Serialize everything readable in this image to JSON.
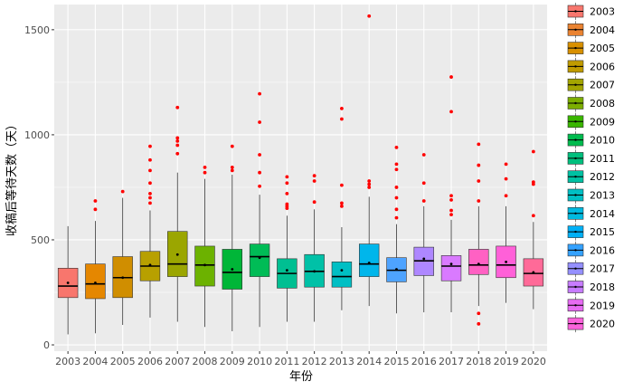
{
  "chart_data": {
    "type": "boxplot",
    "xlabel": "年份",
    "ylabel": "收稿后等待天数（天）",
    "ylim": [
      -30,
      1620
    ],
    "y_ticks": [
      0,
      500,
      1000,
      1500
    ],
    "categories": [
      "2003",
      "2004",
      "2005",
      "2006",
      "2007",
      "2008",
      "2009",
      "2010",
      "2011",
      "2012",
      "2013",
      "2014",
      "2015",
      "2016",
      "2017",
      "2018",
      "2019",
      "2020"
    ],
    "colors": [
      "#F8766D",
      "#EA8331",
      "#D89000",
      "#C09B00",
      "#A3A500",
      "#7CAE00",
      "#39B600",
      "#00BB4E",
      "#00BF7D",
      "#00C1A3",
      "#00BFC4",
      "#00BAE0",
      "#00B0F6",
      "#35A2FF",
      "#9590FF",
      "#C77CFF",
      "#E76BF3",
      "#FA62DB",
      "#FF62BC",
      "#FF6A98"
    ],
    "box_colors": [
      "#F8766D",
      "#E58700",
      "#D08E00",
      "#B8A000",
      "#9BA600",
      "#6CB200",
      "#00B638",
      "#00BC56",
      "#00BF92",
      "#00C1A7",
      "#00BFC4",
      "#00B6EB",
      "#4EA3FF",
      "#AE87FF",
      "#D97AFF",
      "#FF61C3",
      "#FF60D8",
      "#FF6A98"
    ],
    "series": [
      {
        "name": "2003",
        "min": 50,
        "q1": 225,
        "median": 280,
        "q3": 365,
        "max": 565,
        "mean": 295,
        "outliers": []
      },
      {
        "name": "2004",
        "min": 55,
        "q1": 220,
        "median": 290,
        "q3": 385,
        "max": 590,
        "mean": 295,
        "outliers": [
          645,
          685
        ]
      },
      {
        "name": "2005",
        "min": 95,
        "q1": 225,
        "median": 320,
        "q3": 420,
        "max": 700,
        "mean": 320,
        "outliers": [
          730
        ]
      },
      {
        "name": "2006",
        "min": 130,
        "q1": 305,
        "median": 375,
        "q3": 445,
        "max": 640,
        "mean": 380,
        "outliers": [
          675,
          700,
          720,
          770,
          830,
          880,
          945
        ]
      },
      {
        "name": "2007",
        "min": 110,
        "q1": 325,
        "median": 385,
        "q3": 540,
        "max": 820,
        "mean": 430,
        "outliers": [
          910,
          950,
          970,
          985,
          1130
        ]
      },
      {
        "name": "2008",
        "min": 85,
        "q1": 280,
        "median": 380,
        "q3": 470,
        "max": 790,
        "mean": 380,
        "outliers": [
          820,
          845
        ]
      },
      {
        "name": "2009",
        "min": 65,
        "q1": 265,
        "median": 345,
        "q3": 455,
        "max": 810,
        "mean": 360,
        "outliers": [
          830,
          845,
          945
        ]
      },
      {
        "name": "2010",
        "min": 85,
        "q1": 325,
        "median": 420,
        "q3": 480,
        "max": 715,
        "mean": 415,
        "outliers": [
          755,
          820,
          905,
          1060,
          1195
        ]
      },
      {
        "name": "2011",
        "min": 110,
        "q1": 270,
        "median": 340,
        "q3": 410,
        "max": 615,
        "mean": 355,
        "outliers": [
          650,
          660,
          670,
          720,
          770,
          800
        ]
      },
      {
        "name": "2012",
        "min": 110,
        "q1": 275,
        "median": 350,
        "q3": 430,
        "max": 645,
        "mean": 350,
        "outliers": [
          680,
          780,
          805
        ]
      },
      {
        "name": "2013",
        "min": 165,
        "q1": 275,
        "median": 325,
        "q3": 395,
        "max": 560,
        "mean": 355,
        "outliers": [
          660,
          675,
          760,
          1075,
          1125
        ]
      },
      {
        "name": "2014",
        "min": 185,
        "q1": 325,
        "median": 385,
        "q3": 480,
        "max": 705,
        "mean": 390,
        "outliers": [
          750,
          765,
          780,
          1565
        ]
      },
      {
        "name": "2015",
        "min": 150,
        "q1": 300,
        "median": 355,
        "q3": 415,
        "max": 575,
        "mean": 360,
        "outliers": [
          605,
          645,
          700,
          750,
          835,
          860,
          940
        ]
      },
      {
        "name": "2016",
        "min": 155,
        "q1": 330,
        "median": 400,
        "q3": 465,
        "max": 660,
        "mean": 410,
        "outliers": [
          685,
          770,
          905
        ]
      },
      {
        "name": "2017",
        "min": 155,
        "q1": 305,
        "median": 375,
        "q3": 425,
        "max": 595,
        "mean": 385,
        "outliers": [
          620,
          640,
          690,
          710,
          1110,
          1275
        ]
      },
      {
        "name": "2018",
        "min": 185,
        "q1": 335,
        "median": 380,
        "q3": 455,
        "max": 660,
        "mean": 385,
        "outliers": [
          100,
          150,
          685,
          780,
          855,
          955
        ]
      },
      {
        "name": "2019",
        "min": 200,
        "q1": 320,
        "median": 380,
        "q3": 470,
        "max": 660,
        "mean": 395,
        "outliers": [
          710,
          790,
          860
        ]
      },
      {
        "name": "2020",
        "min": 170,
        "q1": 280,
        "median": 340,
        "q3": 410,
        "max": 585,
        "mean": 345,
        "outliers": [
          615,
          765,
          775,
          920
        ]
      }
    ],
    "legend": [
      "2003",
      "2004",
      "2005",
      "2006",
      "2007",
      "2008",
      "2009",
      "2010",
      "2011",
      "2012",
      "2013",
      "2014",
      "2015",
      "2016",
      "2017",
      "2018",
      "2019",
      "2020"
    ],
    "legend_position": "right",
    "grid": true,
    "outlier_color": "#FF0000",
    "panel_color": "#EBEBEB",
    "grid_color": "#FFFFFF"
  }
}
